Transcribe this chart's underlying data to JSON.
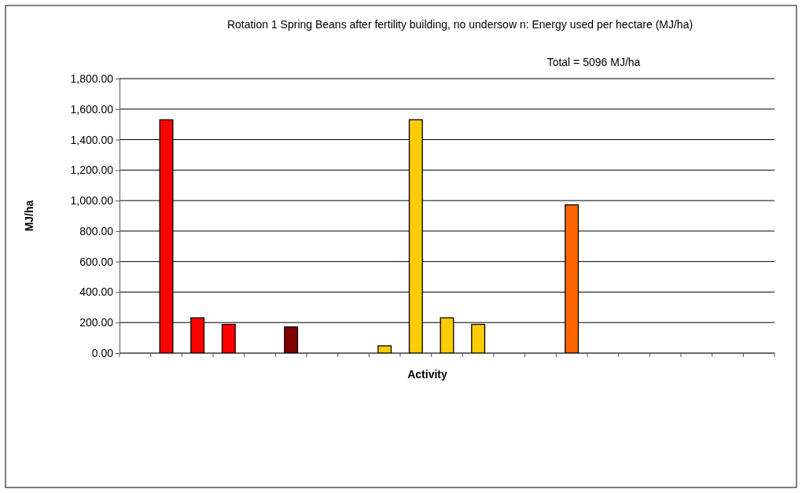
{
  "chart_data": {
    "type": "bar",
    "title": "Rotation 1 Spring Beans after fertility building, no undersow n: Energy used per hectare (MJ/ha)",
    "annotations": [
      "Total = 5096 MJ/ha"
    ],
    "xlabel": "Activity",
    "ylabel": "MJ/ha",
    "categories": [
      null,
      null,
      null,
      null,
      null,
      null,
      null,
      null,
      null,
      null,
      null,
      null,
      null,
      null,
      null,
      null,
      null,
      null,
      null,
      null,
      null
    ],
    "values": [
      0,
      1530,
      231,
      188,
      0,
      171,
      0,
      0,
      47,
      1530,
      231,
      188,
      0,
      0,
      972,
      0,
      0,
      0,
      0,
      0,
      0
    ],
    "colors": [
      "#ff0000",
      "#ff0000",
      "#ff0000",
      "#ff0000",
      "#800000",
      "#800000",
      "#800000",
      "#ffcc00",
      "#ffcc00",
      "#ffcc00",
      "#ffcc00",
      "#ffcc00",
      "#ffcc00",
      "#ff6600",
      "#ff6600",
      "#ff6600",
      "#ff6600",
      "#ff6600",
      "#ff6600",
      "#ff6600",
      "#ff6600"
    ],
    "ylim": [
      0,
      1800
    ],
    "yticks": [
      {
        "value": 0,
        "label": "0.00"
      },
      {
        "value": 200,
        "label": "200.00"
      },
      {
        "value": 400,
        "label": "400.00"
      },
      {
        "value": 600,
        "label": "600.00"
      },
      {
        "value": 800,
        "label": "800.00"
      },
      {
        "value": 1000,
        "label": "1,000.00"
      },
      {
        "value": 1200,
        "label": "1,200.00"
      },
      {
        "value": 1400,
        "label": "1,400.00"
      },
      {
        "value": 1600,
        "label": "1,600.00"
      },
      {
        "value": 1800,
        "label": "1,800.00"
      }
    ],
    "grid": "y"
  }
}
